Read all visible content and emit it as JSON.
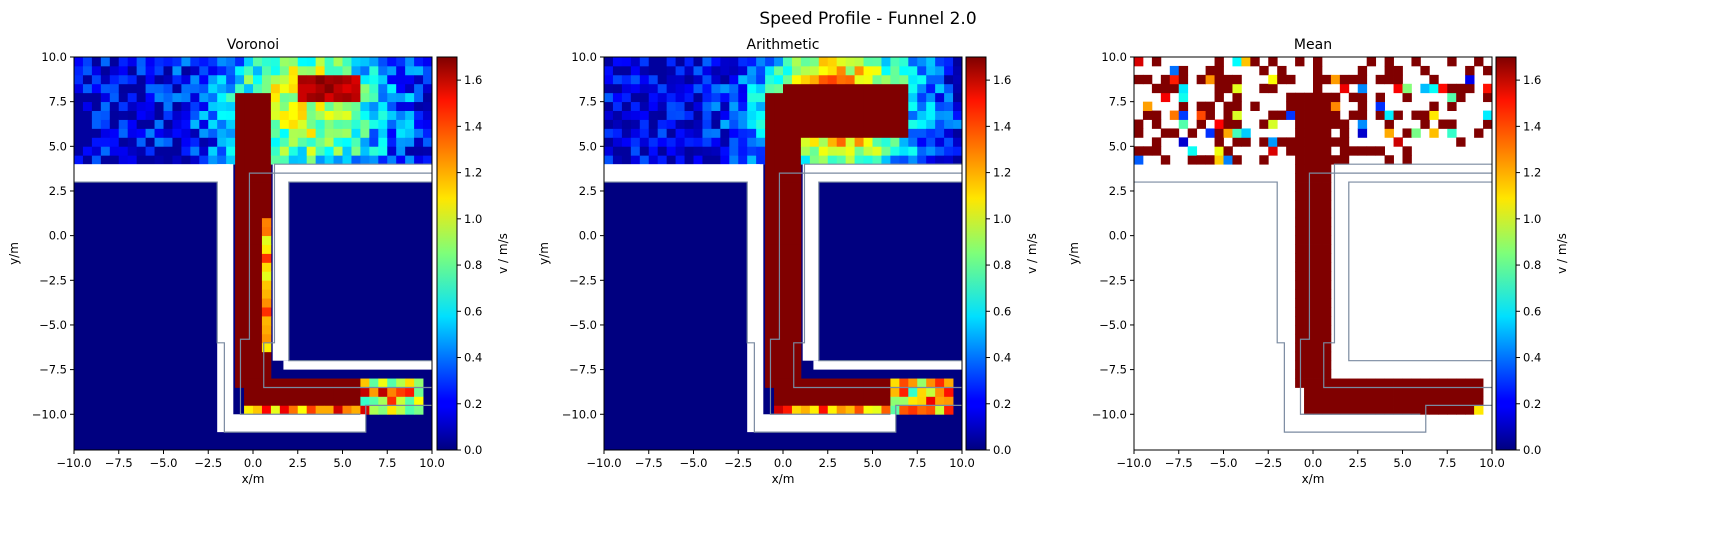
{
  "suptitle": "Speed Profile - Funnel  2.0",
  "colors": {
    "gap": "#ffffff",
    "wall": "#7a8aa0",
    "axis": "#000000"
  },
  "chart_data": [
    {
      "type": "heatmap",
      "title": "Voronoi",
      "xlabel": "x/m",
      "ylabel": "y/m",
      "xlim": [
        -10,
        10
      ],
      "ylim": [
        -12,
        10
      ],
      "x_ticks": [
        -10,
        -7.5,
        -5,
        -2.5,
        0,
        2.5,
        5,
        7.5,
        10
      ],
      "x_tick_labels": [
        "−10.0",
        "−7.5",
        "−5.0",
        "−2.5",
        "0.0",
        "2.5",
        "5.0",
        "7.5",
        "10.0"
      ],
      "y_ticks": [
        -10,
        -7.5,
        -5,
        -2.5,
        0,
        2.5,
        5,
        7.5,
        10
      ],
      "y_tick_labels": [
        "−10.0",
        "−7.5",
        "−5.0",
        "−2.5",
        "0.0",
        "2.5",
        "5.0",
        "7.5",
        "10.0"
      ],
      "colormap": "jet",
      "colorbar_label": "v / m/s",
      "colorbar_range": [
        0,
        1.7
      ],
      "colorbar_ticks": [
        0,
        0.2,
        0.4,
        0.6,
        0.8,
        1.0,
        1.2,
        1.4,
        1.6
      ],
      "colorbar_tick_labels": [
        "0.0",
        "0.2",
        "0.4",
        "0.6",
        "0.8",
        "1.0",
        "1.2",
        "1.4",
        "1.6"
      ],
      "background_value": 0.0,
      "regions": [
        {
          "part": "room",
          "x": [
            -10,
            10
          ],
          "y": [
            4,
            10
          ],
          "speed": "0.1–1.5, mostly 0.2–0.9"
        },
        {
          "part": "corridor",
          "x": [
            -1,
            1
          ],
          "y": [
            -8.5,
            6
          ],
          "speed": "1.7"
        },
        {
          "part": "corridor edge",
          "x": [
            0.5,
            0.8
          ],
          "y": [
            -6.5,
            1
          ],
          "speed": "1.1–1.5"
        },
        {
          "part": "lower corridor",
          "x": [
            -0.5,
            9.5
          ],
          "y": [
            -10,
            -8
          ],
          "speed": "0.9–1.7"
        }
      ],
      "walls": "funnel-shaped corridor from room (y>4) down to y≈-11, turning right along y≈-9"
    },
    {
      "type": "heatmap",
      "title": "Arithmetic",
      "xlabel": "x/m",
      "ylabel": "y/m",
      "xlim": [
        -10,
        10
      ],
      "ylim": [
        -12,
        10
      ],
      "x_ticks": [
        -10,
        -7.5,
        -5,
        -2.5,
        0,
        2.5,
        5,
        7.5,
        10
      ],
      "x_tick_labels": [
        "−10.0",
        "−7.5",
        "−5.0",
        "−2.5",
        "0.0",
        "2.5",
        "5.0",
        "7.5",
        "10.0"
      ],
      "y_ticks": [
        -10,
        -7.5,
        -5,
        -2.5,
        0,
        2.5,
        5,
        7.5,
        10
      ],
      "y_tick_labels": [
        "−10.0",
        "−7.5",
        "−5.0",
        "−2.5",
        "0.0",
        "2.5",
        "5.0",
        "7.5",
        "10.0"
      ],
      "colormap": "jet",
      "colorbar_label": "v / m/s",
      "colorbar_range": [
        0,
        1.7
      ],
      "colorbar_ticks": [
        0,
        0.2,
        0.4,
        0.6,
        0.8,
        1.0,
        1.2,
        1.4,
        1.6
      ],
      "colorbar_tick_labels": [
        "0.0",
        "0.2",
        "0.4",
        "0.6",
        "0.8",
        "1.0",
        "1.2",
        "1.4",
        "1.6"
      ],
      "background_value": 0.0,
      "regions": [
        {
          "part": "room",
          "x": [
            -10,
            10
          ],
          "y": [
            4,
            10
          ],
          "speed": "0.1–1.7"
        },
        {
          "part": "corridor",
          "x": [
            -1,
            1
          ],
          "y": [
            -8.5,
            6
          ],
          "speed": "1.7"
        },
        {
          "part": "lower corridor",
          "x": [
            -0.5,
            9.5
          ],
          "y": [
            -10,
            -8
          ],
          "speed": "0.9–1.7"
        }
      ],
      "walls": "funnel-shaped corridor from room (y>4) down to y≈-11, turning right along y≈-9"
    },
    {
      "type": "heatmap",
      "title": "Mean",
      "xlabel": "x/m",
      "ylabel": "y/m",
      "xlim": [
        -10,
        10
      ],
      "ylim": [
        -12,
        10
      ],
      "x_ticks": [
        -10,
        -7.5,
        -5,
        -2.5,
        0,
        2.5,
        5,
        7.5,
        10
      ],
      "x_tick_labels": [
        "−10.0",
        "−7.5",
        "−5.0",
        "−2.5",
        "0.0",
        "2.5",
        "5.0",
        "7.5",
        "10.0"
      ],
      "y_ticks": [
        -10,
        -7.5,
        -5,
        -2.5,
        0,
        2.5,
        5,
        7.5,
        10
      ],
      "y_tick_labels": [
        "−10.0",
        "−7.5",
        "−5.0",
        "−2.5",
        "0.0",
        "2.5",
        "5.0",
        "7.5",
        "10.0"
      ],
      "colormap": "jet",
      "colorbar_label": "v / m/s",
      "colorbar_range": [
        0,
        1.7
      ],
      "colorbar_ticks": [
        0,
        0.2,
        0.4,
        0.6,
        0.8,
        1.0,
        1.2,
        1.4,
        1.6
      ],
      "colorbar_tick_labels": [
        "0.0",
        "0.2",
        "0.4",
        "0.6",
        "0.8",
        "1.0",
        "1.2",
        "1.4",
        "1.6"
      ],
      "background_value": null,
      "regions": [
        {
          "part": "room (sparse cells)",
          "x": [
            -10,
            10
          ],
          "y": [
            4,
            10
          ],
          "speed": "0.0–1.7, mostly 1.7"
        },
        {
          "part": "corridor",
          "x": [
            -1,
            1
          ],
          "y": [
            -8.5,
            6
          ],
          "speed": "1.7"
        },
        {
          "part": "lower corridor",
          "x": [
            0,
            9.5
          ],
          "y": [
            -10,
            -8
          ],
          "speed": "1.7"
        }
      ],
      "walls": "funnel-shaped corridor from room (y>4) down to y≈-11, turning right along y≈-9"
    }
  ]
}
